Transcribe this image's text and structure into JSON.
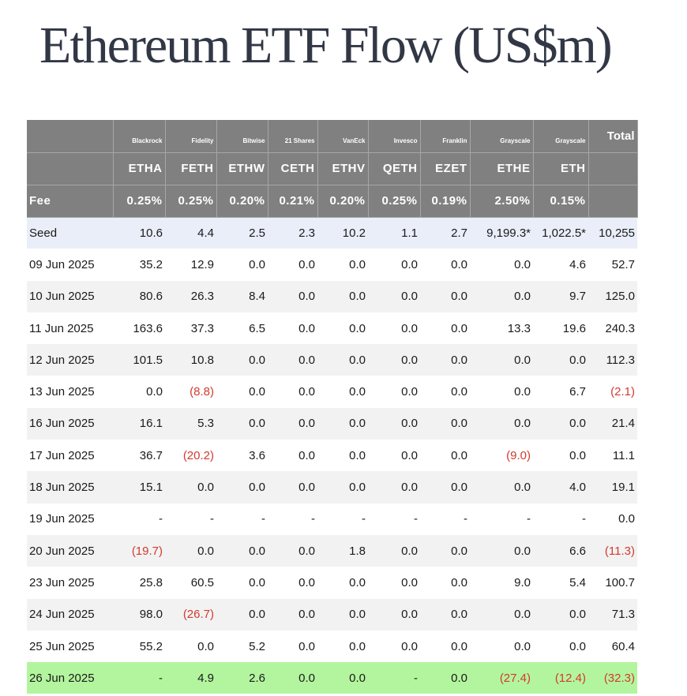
{
  "title": "Ethereum ETF Flow (US$m)",
  "issuers": [
    "",
    "Blackrock",
    "Fidelity",
    "Bitwise",
    "21 Shares",
    "VanEck",
    "Invesco",
    "Franklin",
    "Grayscale",
    "Grayscale",
    "Total"
  ],
  "tickers": [
    "",
    "ETHA",
    "FETH",
    "ETHW",
    "CETH",
    "ETHV",
    "QETH",
    "EZET",
    "ETHE",
    "ETH",
    ""
  ],
  "fees": [
    "Fee",
    "0.25%",
    "0.25%",
    "0.20%",
    "0.21%",
    "0.20%",
    "0.25%",
    "0.19%",
    "2.50%",
    "0.15%",
    ""
  ],
  "rows": [
    [
      "Seed",
      "10.6",
      "4.4",
      "2.5",
      "2.3",
      "10.2",
      "1.1",
      "2.7",
      "9,199.3*",
      "1,022.5*",
      "10,255"
    ],
    [
      "09 Jun 2025",
      "35.2",
      "12.9",
      "0.0",
      "0.0",
      "0.0",
      "0.0",
      "0.0",
      "0.0",
      "4.6",
      "52.7"
    ],
    [
      "10 Jun 2025",
      "80.6",
      "26.3",
      "8.4",
      "0.0",
      "0.0",
      "0.0",
      "0.0",
      "0.0",
      "9.7",
      "125.0"
    ],
    [
      "11 Jun 2025",
      "163.6",
      "37.3",
      "6.5",
      "0.0",
      "0.0",
      "0.0",
      "0.0",
      "13.3",
      "19.6",
      "240.3"
    ],
    [
      "12 Jun 2025",
      "101.5",
      "10.8",
      "0.0",
      "0.0",
      "0.0",
      "0.0",
      "0.0",
      "0.0",
      "0.0",
      "112.3"
    ],
    [
      "13 Jun 2025",
      "0.0",
      "(8.8)",
      "0.0",
      "0.0",
      "0.0",
      "0.0",
      "0.0",
      "0.0",
      "6.7",
      "(2.1)"
    ],
    [
      "16 Jun 2025",
      "16.1",
      "5.3",
      "0.0",
      "0.0",
      "0.0",
      "0.0",
      "0.0",
      "0.0",
      "0.0",
      "21.4"
    ],
    [
      "17 Jun 2025",
      "36.7",
      "(20.2)",
      "3.6",
      "0.0",
      "0.0",
      "0.0",
      "0.0",
      "(9.0)",
      "0.0",
      "11.1"
    ],
    [
      "18 Jun 2025",
      "15.1",
      "0.0",
      "0.0",
      "0.0",
      "0.0",
      "0.0",
      "0.0",
      "0.0",
      "4.0",
      "19.1"
    ],
    [
      "19 Jun 2025",
      "-",
      "-",
      "-",
      "-",
      "-",
      "-",
      "-",
      "-",
      "-",
      "0.0"
    ],
    [
      "20 Jun 2025",
      "(19.7)",
      "0.0",
      "0.0",
      "0.0",
      "1.8",
      "0.0",
      "0.0",
      "0.0",
      "6.6",
      "(11.3)"
    ],
    [
      "23 Jun 2025",
      "25.8",
      "60.5",
      "0.0",
      "0.0",
      "0.0",
      "0.0",
      "0.0",
      "9.0",
      "5.4",
      "100.7"
    ],
    [
      "24 Jun 2025",
      "98.0",
      "(26.7)",
      "0.0",
      "0.0",
      "0.0",
      "0.0",
      "0.0",
      "0.0",
      "0.0",
      "71.3"
    ],
    [
      "25 Jun 2025",
      "55.2",
      "0.0",
      "5.2",
      "0.0",
      "0.0",
      "0.0",
      "0.0",
      "0.0",
      "0.0",
      "60.4"
    ],
    [
      "26 Jun 2025",
      "-",
      "4.9",
      "2.6",
      "0.0",
      "0.0",
      "-",
      "0.0",
      "(27.4)",
      "(12.4)",
      "(32.3)"
    ]
  ],
  "colors": {
    "header_bg": "#808080",
    "seed_row_bg": "#e9eef8",
    "alt_row_bg": "#f2f2f2",
    "latest_row_bg": "#b3f59e",
    "negative_text": "#d23a2e"
  }
}
